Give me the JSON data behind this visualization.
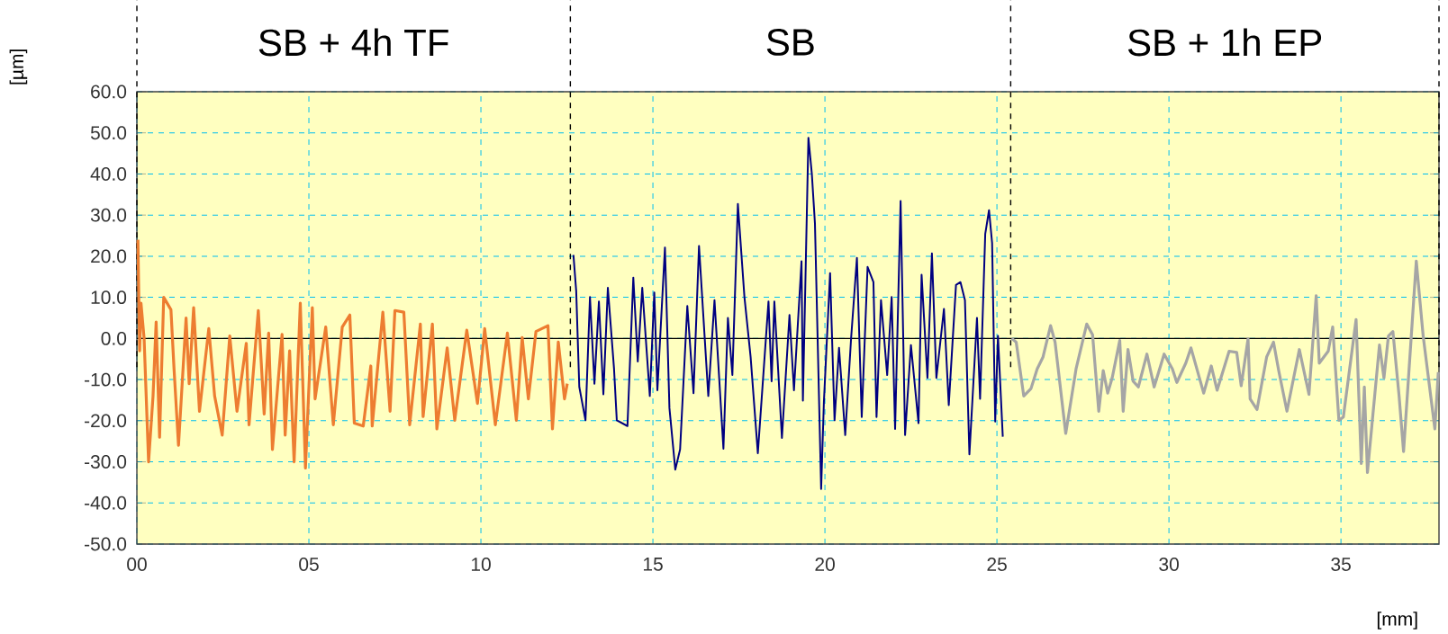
{
  "chart_data": {
    "type": "line",
    "xlabel": "[mm]",
    "ylabel": "[µm]",
    "xlim": [
      0,
      37.85
    ],
    "ylim": [
      -50,
      60
    ],
    "xticks": [
      {
        "value": 0,
        "label": "00"
      },
      {
        "value": 5,
        "label": "05"
      },
      10,
      15,
      20,
      25,
      30,
      35
    ],
    "yticks": [
      {
        "value": -50,
        "label": "-50.0"
      },
      {
        "value": -40,
        "label": "-40.0"
      },
      {
        "value": -30,
        "label": "-30.0"
      },
      {
        "value": -20,
        "label": "-20.0"
      },
      {
        "value": -10,
        "label": "-10.0"
      },
      {
        "value": 0,
        "label": "0.0"
      },
      {
        "value": 10,
        "label": "10.0"
      },
      {
        "value": 20,
        "label": "20.0"
      },
      {
        "value": 30,
        "label": "30.0"
      },
      {
        "value": 40,
        "label": "40.0"
      },
      {
        "value": 50,
        "label": "50.0"
      },
      {
        "value": 60,
        "label": "60.0"
      }
    ],
    "grid": true,
    "ref_lines": [
      {
        "axis": "x",
        "value": 0,
        "color": "#000000",
        "line_style": "dashed"
      },
      {
        "axis": "x",
        "value": 12.6,
        "color": "#000000",
        "line_style": "dashed"
      },
      {
        "axis": "x",
        "value": 25.4,
        "color": "#000000",
        "line_style": "dashed"
      },
      {
        "axis": "x",
        "value": 37.85,
        "color": "#000000",
        "line_style": "dashed"
      },
      {
        "axis": "y",
        "value": 0,
        "color": "#000000",
        "line_style": "solid"
      }
    ],
    "annotations": [
      "SB + 4h TF",
      "SB",
      "SB + 1h EP"
    ],
    "series": [
      {
        "color": "#ed7d31",
        "x": [
          0.03,
          0.08,
          0.12,
          0.21,
          0.34,
          0.47,
          0.56,
          0.66,
          0.78,
          0.99,
          1.08,
          1.21,
          1.43,
          1.52,
          1.65,
          1.82,
          2.09,
          2.26,
          2.48,
          2.7,
          2.91,
          3.18,
          3.26,
          3.53,
          3.7,
          3.83,
          3.94,
          4.22,
          4.31,
          4.44,
          4.57,
          4.75,
          4.9,
          5.1,
          5.18,
          5.49,
          5.71,
          5.97,
          6.19,
          6.32,
          6.58,
          6.8,
          6.84,
          7.15,
          7.36,
          7.5,
          7.76,
          7.93,
          8.24,
          8.32,
          8.59,
          8.72,
          9.02,
          9.24,
          9.59,
          9.9,
          10.11,
          10.42,
          10.77,
          11.03,
          11.2,
          11.38,
          11.6,
          11.95,
          12.08,
          12.25,
          12.43,
          12.51
        ],
        "values": [
          24,
          -3,
          8.6,
          0,
          -30,
          -14,
          4,
          -24,
          10,
          7,
          -7.4,
          -26,
          5,
          -11,
          7.5,
          -17.7,
          2.4,
          -14,
          -23.5,
          0.6,
          -17.7,
          -1.2,
          -21,
          6.8,
          -18.4,
          1.3,
          -27,
          1,
          -23.5,
          -3,
          -30,
          8.6,
          -31.5,
          7.5,
          -14.7,
          2.8,
          -21,
          2.8,
          5.7,
          -20.6,
          -21.3,
          -6.7,
          -21.3,
          6.4,
          -17.7,
          6.8,
          6.4,
          -21,
          3.5,
          -19,
          3.5,
          -22,
          -2.3,
          -19.9,
          2,
          -15.8,
          2.4,
          -21,
          1.3,
          -19.9,
          0.2,
          -14.7,
          1.7,
          3.1,
          -22,
          -0.9,
          -14.7,
          -11
        ]
      },
      {
        "color": "#000080",
        "x": [
          12.69,
          12.77,
          12.86,
          13.04,
          13.17,
          13.3,
          13.43,
          13.56,
          13.69,
          13.87,
          13.95,
          14.26,
          14.43,
          14.56,
          14.69,
          14.91,
          15.04,
          15.13,
          15.35,
          15.48,
          15.65,
          15.79,
          16.0,
          16.18,
          16.34,
          16.61,
          16.79,
          17.05,
          17.18,
          17.31,
          17.47,
          17.66,
          17.84,
          18.05,
          18.36,
          18.45,
          18.53,
          18.75,
          18.97,
          19.1,
          19.32,
          19.36,
          19.52,
          19.62,
          19.71,
          19.89,
          19.97,
          20.15,
          20.28,
          20.41,
          20.59,
          20.76,
          20.93,
          21.07,
          21.24,
          21.41,
          21.5,
          21.63,
          21.81,
          21.94,
          22.04,
          22.2,
          22.33,
          22.5,
          22.72,
          22.81,
          22.98,
          23.11,
          23.24,
          23.46,
          23.6,
          23.81,
          23.94,
          24.07,
          24.2,
          24.42,
          24.51,
          24.66,
          24.77,
          24.86,
          24.95,
          25.03,
          25.17
        ],
        "values": [
          20.3,
          11.6,
          -11.8,
          -19.9,
          10.1,
          -11,
          9,
          -13.6,
          12.3,
          -7.4,
          -19.9,
          -21.3,
          14.8,
          -5.6,
          12.3,
          -14,
          11.2,
          -12.6,
          22.1,
          -16.9,
          -31.9,
          -27,
          7.9,
          -13.3,
          22.5,
          -14,
          9.3,
          -26.8,
          5,
          -8.9,
          32.7,
          10.1,
          -4.5,
          -27.9,
          9,
          -10.4,
          9,
          -24.2,
          5.7,
          -12.6,
          18.8,
          -15.1,
          48.8,
          40,
          28,
          -36.6,
          -15.5,
          15.9,
          -19.9,
          -2.3,
          -23.5,
          -0.1,
          19.6,
          -19.1,
          17.4,
          13.7,
          -19.1,
          9.3,
          -8.9,
          10.1,
          -22,
          33.4,
          -23.5,
          -1.6,
          -20.6,
          15.5,
          -9.6,
          20.7,
          -9.6,
          7.2,
          -16.2,
          13,
          13.7,
          9.3,
          -28.2,
          5,
          -14.7,
          25.4,
          31.2,
          23.2,
          -20.2,
          0.6,
          -23.9
        ]
      },
      {
        "color": "#a5a5a5",
        "x": [
          25.43,
          25.56,
          25.78,
          25.99,
          26.17,
          26.34,
          26.56,
          26.69,
          27.0,
          27.3,
          27.61,
          27.78,
          27.96,
          28.09,
          28.22,
          28.35,
          28.57,
          28.67,
          28.81,
          28.96,
          29.11,
          29.36,
          29.57,
          29.86,
          30.1,
          30.23,
          30.49,
          30.64,
          31.01,
          31.23,
          31.4,
          31.75,
          31.97,
          32.1,
          32.3,
          32.36,
          32.56,
          32.84,
          33.04,
          33.19,
          33.43,
          33.79,
          34.07,
          34.28,
          34.37,
          34.63,
          34.76,
          34.94,
          35.07,
          35.44,
          35.59,
          35.68,
          35.77,
          36.12,
          36.25,
          36.38,
          36.51,
          36.69,
          36.82,
          37.19,
          37.39,
          37.73,
          37.83
        ],
        "values": [
          0,
          -0.9,
          -14,
          -12.2,
          -7.4,
          -4.5,
          3.1,
          -0.9,
          -23.1,
          -7.4,
          3.5,
          0.9,
          -17.7,
          -7.8,
          -13.3,
          -9.6,
          -0.5,
          -17.7,
          -2.7,
          -10.4,
          -11.8,
          -3.8,
          -11.8,
          -3.8,
          -7.4,
          -10.7,
          -6,
          -2.3,
          -13.3,
          -6.7,
          -12.6,
          -3.1,
          -3.4,
          -11.5,
          -0.1,
          -14.7,
          -17.3,
          -4.5,
          -0.9,
          -7.8,
          -17.7,
          -2.7,
          -13.6,
          10.4,
          -6,
          -3.1,
          2.8,
          -19.9,
          -19.1,
          4.6,
          -30.4,
          -11.8,
          -32.6,
          -1.6,
          -9.6,
          0.6,
          1.7,
          -14,
          -27.5,
          18.8,
          0.6,
          -22,
          -8.2
        ]
      }
    ]
  }
}
